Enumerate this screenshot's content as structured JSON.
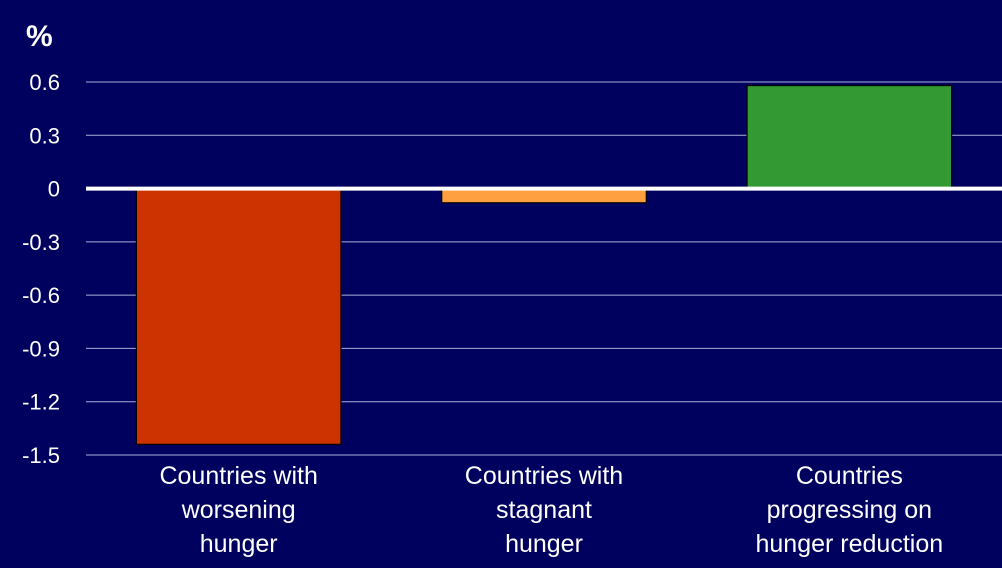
{
  "chart_data": {
    "type": "bar",
    "ylabel": "%",
    "ylim": [
      -1.5,
      0.6
    ],
    "yticks": [
      "0.6",
      "0.3",
      "0",
      "-0.3",
      "-0.6",
      "-0.9",
      "-1.2",
      "-1.5"
    ],
    "grid": true,
    "categories": [
      [
        "Countries with",
        "worsening",
        "hunger"
      ],
      [
        "Countries with",
        "stagnant",
        "hunger"
      ],
      [
        "Countries",
        "progressing on",
        "hunger reduction"
      ]
    ],
    "values": [
      -1.44,
      -0.08,
      0.58
    ],
    "colors": [
      "#cc3300",
      "#ffa040",
      "#339933"
    ],
    "background": "#00005e",
    "gridline_color": "#aab0d8",
    "zero_line_color": "#ffffff"
  }
}
